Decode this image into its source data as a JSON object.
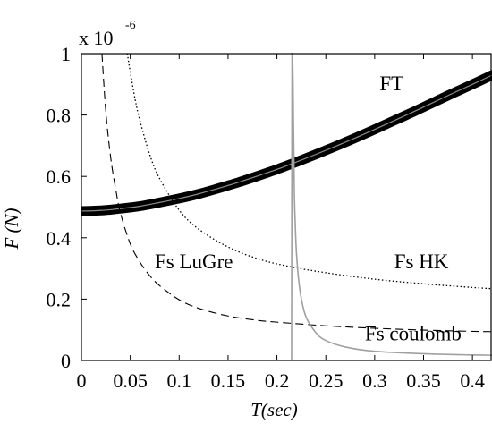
{
  "chart_data": {
    "type": "line",
    "title": "",
    "xlabel": "T(sec)",
    "ylabel": "F (N)",
    "y_multiplier": {
      "base": "x 10",
      "exponent": "-6"
    },
    "xlim": [
      0,
      0.42
    ],
    "ylim": [
      0,
      1
    ],
    "x_ticks": [
      0,
      0.05,
      0.1,
      0.15,
      0.2,
      0.25,
      0.3,
      0.35,
      0.4
    ],
    "x_tick_labels": [
      "0",
      "0.05",
      "0.1",
      "0.15",
      "0.2",
      "0.25",
      "0.3",
      "0.35",
      "0.4"
    ],
    "y_ticks": [
      0,
      0.2,
      0.4,
      0.6,
      0.8,
      1
    ],
    "y_tick_labels": [
      "0",
      "0.2",
      "0.4",
      "0.6",
      "0.8",
      "1"
    ],
    "grid": false,
    "legend": "none",
    "annotations": [
      {
        "text": "FT",
        "x": 0.305,
        "y": 0.88,
        "series": "FT"
      },
      {
        "text": "Fs HK",
        "x": 0.32,
        "y": 0.3,
        "series": "Fs HK"
      },
      {
        "text": "Fs LuGre",
        "x": 0.075,
        "y": 0.3,
        "series": "Fs LuGre"
      },
      {
        "text": "Fs coulomb",
        "x": 0.29,
        "y": 0.065,
        "series": "Fs coulomb"
      }
    ],
    "series": [
      {
        "name": "FT",
        "style": "thick-solid",
        "color": "#000000",
        "x": [
          0,
          0.02,
          0.04,
          0.06,
          0.08,
          0.1,
          0.12,
          0.14,
          0.16,
          0.18,
          0.2,
          0.22,
          0.24,
          0.26,
          0.28,
          0.3,
          0.32,
          0.34,
          0.36,
          0.38,
          0.4,
          0.42
        ],
        "y": [
          0.487,
          0.489,
          0.495,
          0.503,
          0.515,
          0.528,
          0.543,
          0.561,
          0.58,
          0.601,
          0.623,
          0.647,
          0.672,
          0.698,
          0.725,
          0.753,
          0.782,
          0.811,
          0.841,
          0.871,
          0.9,
          0.93
        ]
      },
      {
        "name": "Fs LuGre",
        "style": "dashed",
        "color": "#000000",
        "x": [
          0.021,
          0.025,
          0.03,
          0.035,
          0.04,
          0.05,
          0.06,
          0.07,
          0.08,
          0.1,
          0.12,
          0.15,
          0.18,
          0.2,
          0.25,
          0.3,
          0.35,
          0.4,
          0.42
        ],
        "y": [
          1.0,
          0.81,
          0.66,
          0.56,
          0.48,
          0.38,
          0.32,
          0.276,
          0.244,
          0.198,
          0.17,
          0.145,
          0.131,
          0.125,
          0.113,
          0.105,
          0.099,
          0.095,
          0.094
        ]
      },
      {
        "name": "Fs HK",
        "style": "dotted",
        "color": "#000000",
        "x": [
          0.047,
          0.05,
          0.055,
          0.06,
          0.07,
          0.08,
          0.1,
          0.12,
          0.15,
          0.18,
          0.21,
          0.25,
          0.3,
          0.35,
          0.4,
          0.42
        ],
        "y": [
          1.0,
          0.94,
          0.85,
          0.78,
          0.67,
          0.593,
          0.49,
          0.428,
          0.37,
          0.332,
          0.308,
          0.286,
          0.265,
          0.25,
          0.238,
          0.234
        ]
      },
      {
        "name": "Fs coulomb",
        "style": "solid-gray",
        "color": "#a0a0a0",
        "x": [
          0.215,
          0.2155,
          0.216,
          0.2165,
          0.217,
          0.2175,
          0.218,
          0.219,
          0.22,
          0.222,
          0.225,
          0.23,
          0.24,
          0.25,
          0.27,
          0.3,
          0.35,
          0.4,
          0.42
        ],
        "y": [
          0,
          1.0,
          1.0,
          0.9,
          0.75,
          0.62,
          0.52,
          0.42,
          0.35,
          0.27,
          0.2,
          0.14,
          0.09,
          0.065,
          0.044,
          0.03,
          0.022,
          0.018,
          0.017
        ]
      }
    ]
  }
}
